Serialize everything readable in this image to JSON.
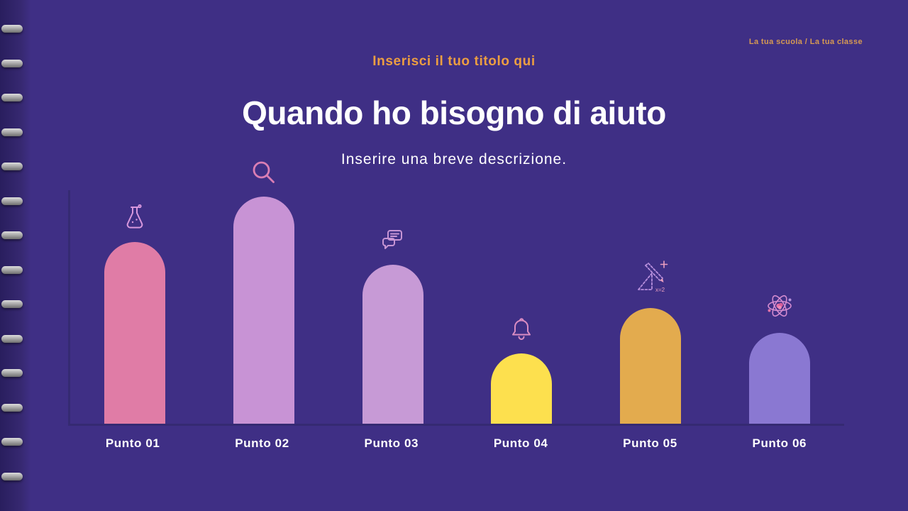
{
  "slide": {
    "meta": "La tua scuola / La tua classe",
    "kicker": "Inserisci il tuo titolo qui",
    "title": "Quando ho bisogno di aiuto",
    "subtitle": "Inserire una breve descrizione."
  },
  "colors": {
    "background": "#3f2f85",
    "binding_dark": "#291e5e",
    "accent_orange": "#ec9e41",
    "meta_orange": "#d79a52",
    "axis": "#352a72",
    "text": "#ffffff"
  },
  "chart_data": {
    "type": "bar",
    "title": "Quando ho bisogno di aiuto",
    "xlabel": "",
    "ylabel": "",
    "categories": [
      "Punto 01",
      "Punto 02",
      "Punto 03",
      "Punto 04",
      "Punto 05",
      "Punto 06"
    ],
    "values": [
      80,
      100,
      70,
      31,
      51,
      40
    ],
    "ylim": [
      0,
      100
    ],
    "grid": false,
    "legend": false,
    "bar_colors": [
      "#e07ca6",
      "#c893d5",
      "#c79ad6",
      "#fde04e",
      "#e3ab4e",
      "#8a78d2"
    ],
    "icons": [
      "flask-icon",
      "magnifier-icon",
      "chat-icon",
      "bell-icon",
      "geometry-icon",
      "atom-icon"
    ]
  }
}
